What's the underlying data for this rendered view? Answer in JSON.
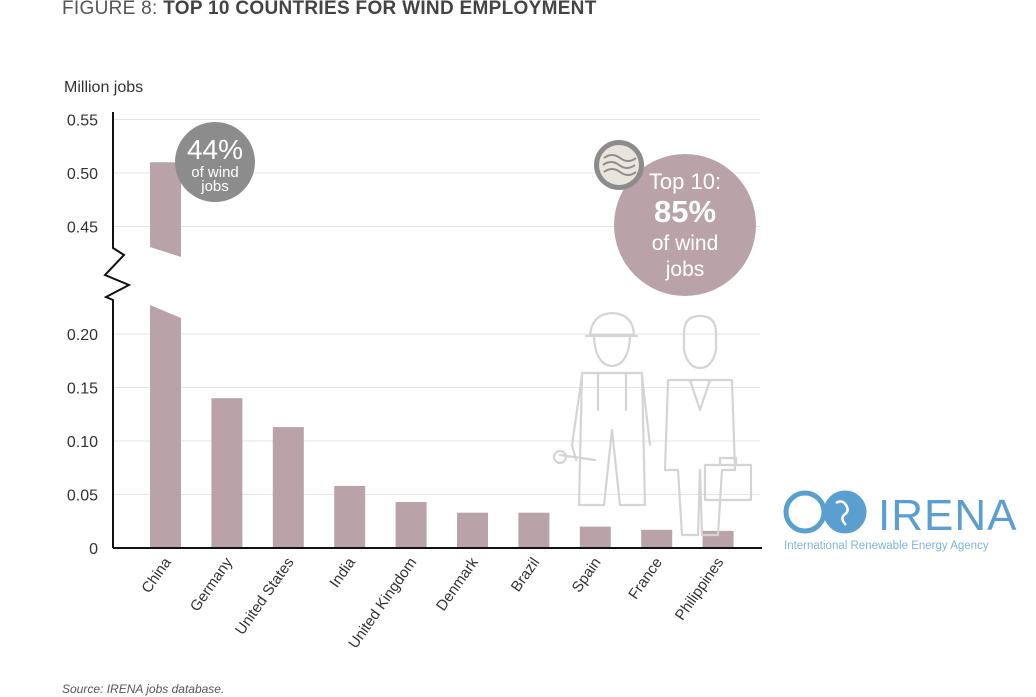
{
  "figure": {
    "label": "FIGURE 8:",
    "title": "TOP 10 COUNTRIES FOR WIND EMPLOYMENT",
    "source": "Source: IRENA jobs database."
  },
  "callouts": {
    "china": {
      "big": "44%",
      "line1": "of wind",
      "line2": "jobs"
    },
    "top10": {
      "line1": "Top 10:",
      "big": "85%",
      "line2": "of wind",
      "line3": "jobs"
    }
  },
  "logo": {
    "name": "IRENA",
    "tagline": "International Renewable Energy Agency"
  },
  "colors": {
    "bar": "#b9a3a8",
    "badge_grey": "#8c8c8c",
    "badge_rose": "#b9a3a8",
    "logo_blue": "#5b9fd0"
  },
  "chart_data": {
    "type": "bar",
    "ylabel": "Million jobs",
    "categories": [
      "China",
      "Germany",
      "United States",
      "India",
      "United Kingdom",
      "Denmark",
      "Brazil",
      "Spain",
      "France",
      "Philippines"
    ],
    "values": [
      0.51,
      0.14,
      0.113,
      0.058,
      0.043,
      0.033,
      0.033,
      0.02,
      0.017,
      0.016
    ],
    "yticks": [
      "0",
      "0.05",
      "0.10",
      "0.15",
      "0.20",
      "0.45",
      "0.50",
      "0.55"
    ],
    "ylim": [
      0,
      0.55
    ],
    "axis_break": [
      0.22,
      0.43
    ],
    "grid": true
  }
}
